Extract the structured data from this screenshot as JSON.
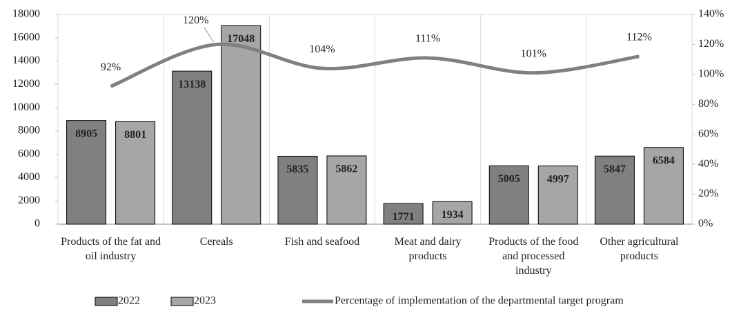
{
  "chart_data": {
    "type": "bar-line",
    "categories": [
      "Products of the fat and oil industry",
      "Cereals",
      "Fish and seafood",
      "Meat and dairy products",
      "Products of the food and processed industry",
      "Other agricultural products"
    ],
    "series": [
      {
        "name": "2022",
        "color": "#808080",
        "values": [
          8905,
          13138,
          5835,
          1771,
          5005,
          5847
        ]
      },
      {
        "name": "2023",
        "color": "#a6a6a6",
        "values": [
          8801,
          17048,
          5862,
          1934,
          4997,
          6584
        ]
      },
      {
        "name": "Percentage of implementation of the departmental target program",
        "color": "#808080",
        "axis": "y2",
        "type": "line",
        "values": [
          92,
          120,
          104,
          111,
          101,
          112
        ],
        "value_labels": [
          "92%",
          "120%",
          "104%",
          "111%",
          "101%",
          "112%"
        ]
      }
    ],
    "ylim": [
      0,
      18000
    ],
    "yticks": [
      0,
      2000,
      4000,
      6000,
      8000,
      10000,
      12000,
      14000,
      16000,
      18000
    ],
    "y2lim": [
      0,
      140
    ],
    "y2ticks": [
      {
        "value": 0,
        "label": "0%"
      },
      {
        "value": 20,
        "label": "20%"
      },
      {
        "value": 40,
        "label": "40%"
      },
      {
        "value": 60,
        "label": "60%"
      },
      {
        "value": 80,
        "label": "80%"
      },
      {
        "value": 100,
        "label": "100%"
      },
      {
        "value": 120,
        "label": "120%"
      },
      {
        "value": 140,
        "label": "140%"
      }
    ],
    "legend": "bottom"
  }
}
